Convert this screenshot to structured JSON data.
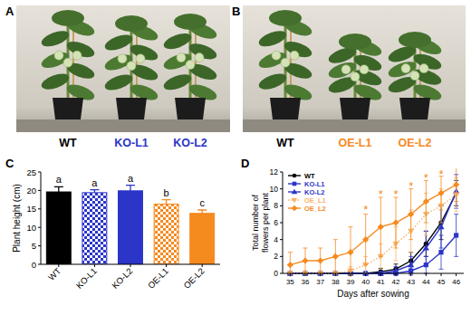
{
  "panels": [
    {
      "label": "A",
      "captions": [
        {
          "text": "WT",
          "color": "#000000"
        },
        {
          "text": "KO-L1",
          "color": "#2b35c8"
        },
        {
          "text": "KO-L2",
          "color": "#2b35c8"
        }
      ]
    },
    {
      "label": "B",
      "captions": [
        {
          "text": "WT",
          "color": "#000000"
        },
        {
          "text": "OE-L1",
          "color": "#f58a1f"
        },
        {
          "text": "OE-L2",
          "color": "#f58a1f"
        }
      ]
    },
    {
      "label": "C"
    },
    {
      "label": "D"
    }
  ],
  "chart_data": [
    {
      "type": "bar",
      "y_label": "Plant height (cm)",
      "categories": [
        "WT",
        "KO-L1",
        "KO-L2",
        "OE-L1",
        "OE-L2"
      ],
      "values": [
        19.6,
        19.4,
        19.9,
        16.3,
        13.8
      ],
      "errors": [
        1.4,
        0.8,
        1.5,
        1.2,
        0.9
      ],
      "colors": [
        "#000000",
        "#2b35c8",
        "#2b35c8",
        "#f58a1f",
        "#f58a1f"
      ],
      "significance": [
        "a",
        "a",
        "a",
        "b",
        "c"
      ],
      "ylim": [
        0,
        25
      ],
      "yticks": [
        0,
        5,
        10,
        15,
        20,
        25
      ]
    },
    {
      "type": "line",
      "x_label": "Days after sowing",
      "y_label": "Total number of flowers per plant",
      "x": [
        35,
        36,
        37,
        38,
        39,
        40,
        41,
        42,
        43,
        44,
        45,
        46
      ],
      "series": [
        {
          "name": "WT",
          "color": "#000000",
          "marker": "circle",
          "line_style": "solid",
          "values": [
            0,
            0,
            0,
            0,
            0,
            0,
            0.2,
            0.5,
            1.5,
            3.5,
            6,
            9.5
          ],
          "errors": [
            0,
            0,
            0,
            0,
            0,
            0,
            0.4,
            0.6,
            1,
            1.5,
            2,
            1.5
          ]
        },
        {
          "name": "KO-L1",
          "color": "#2b35c8",
          "marker": "square",
          "line_style": "solid",
          "values": [
            0,
            0,
            0,
            0,
            0,
            0,
            0,
            0,
            0.3,
            1,
            2.5,
            4.5
          ],
          "errors": [
            0,
            0,
            0,
            0,
            0,
            0,
            0,
            0,
            0.5,
            1,
            2,
            2.5
          ]
        },
        {
          "name": "KO-L2",
          "color": "#2b35c8",
          "marker": "triangle",
          "line_style": "solid",
          "values": [
            0,
            0,
            0,
            0,
            0,
            0,
            0,
            0.3,
            1,
            3,
            5.5,
            9.7
          ],
          "errors": [
            0,
            0,
            0,
            0,
            0,
            0,
            0,
            0.5,
            1,
            2,
            2.5,
            2
          ]
        },
        {
          "name": "OE_L1",
          "color": "#f7b36b",
          "marker": "triangle-down",
          "line_style": "dotted",
          "values": [
            0,
            0,
            0,
            0,
            0.3,
            1,
            2,
            3.5,
            5,
            7,
            8,
            9.3
          ],
          "errors": [
            0,
            0,
            0,
            0,
            0.5,
            1,
            1.5,
            2,
            2.5,
            2.5,
            2,
            2
          ]
        },
        {
          "name": "OE_L2",
          "color": "#f58a1f",
          "marker": "diamond",
          "line_style": "solid",
          "values": [
            1,
            1.5,
            1.5,
            2,
            2.5,
            4,
            5.5,
            6,
            7,
            8.5,
            9.5,
            10.5
          ],
          "errors": [
            1.5,
            1.5,
            1.5,
            2,
            3,
            3,
            3.5,
            3,
            3,
            2.5,
            2,
            2
          ]
        }
      ],
      "annotations": [
        {
          "text": "*",
          "x": 40,
          "y": 7.6
        },
        {
          "text": "*",
          "x": 41,
          "y": 9.4
        },
        {
          "text": "*",
          "x": 42,
          "y": 9.4
        },
        {
          "text": "*",
          "x": 43,
          "y": 10.4
        },
        {
          "text": "*",
          "x": 44,
          "y": 11.4
        },
        {
          "text": "*",
          "x": 45,
          "y": 11.8
        }
      ],
      "xlim": [
        34.5,
        46.5
      ],
      "xticks": [
        35,
        36,
        37,
        38,
        39,
        40,
        41,
        42,
        43,
        44,
        45,
        46
      ],
      "ylim": [
        0,
        12
      ],
      "yticks": [
        0,
        2,
        4,
        6,
        8,
        10,
        12
      ],
      "legend": "upper left"
    }
  ]
}
